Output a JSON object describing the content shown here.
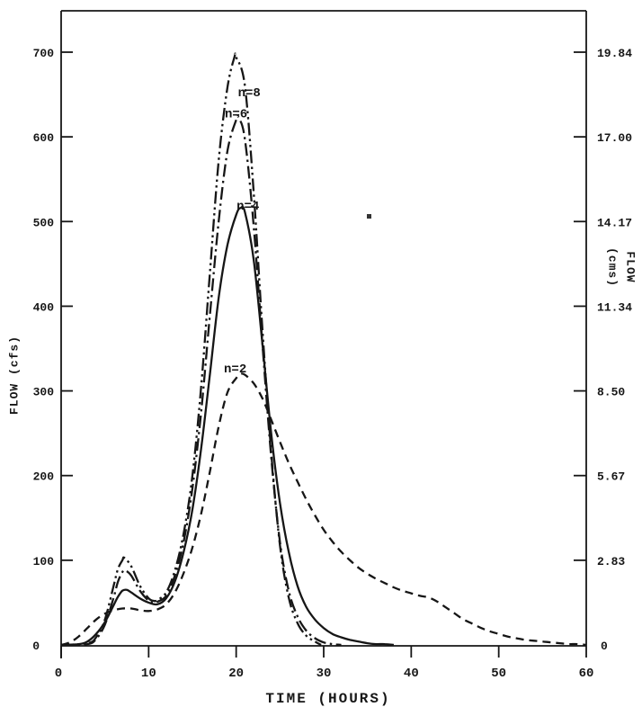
{
  "figure": {
    "background": "#ffffff",
    "ink": "#161616"
  },
  "chart_data": {
    "type": "line",
    "title": "",
    "xlabel": "TIME (HOURS)",
    "ylabel_left": "FLOW (cfs)",
    "ylabel_right_line1": "FLOW",
    "ylabel_right_line2": "(cms)",
    "xlim": [
      0,
      60
    ],
    "ylim_left_cfs": [
      0,
      733
    ],
    "grid": false,
    "legend": "inline curve labels",
    "x_ticks": [
      "0",
      "10",
      "20",
      "30",
      "40",
      "50",
      "60"
    ],
    "x_tick_values": [
      0,
      10,
      20,
      30,
      40,
      50,
      60
    ],
    "y_ticks": [
      {
        "cfs": 0,
        "left_label": "0",
        "right_label": "0"
      },
      {
        "cfs": 100,
        "left_label": "100",
        "right_label": "2.83"
      },
      {
        "cfs": 200,
        "left_label": "200",
        "right_label": "5.67"
      },
      {
        "cfs": 300,
        "left_label": "300",
        "right_label": "8.50"
      },
      {
        "cfs": 400,
        "left_label": "400",
        "right_label": "11.34"
      },
      {
        "cfs": 500,
        "left_label": "500",
        "right_label": "14.17"
      },
      {
        "cfs": 600,
        "left_label": "600",
        "right_label": "17.00"
      },
      {
        "cfs": 700,
        "left_label": "700",
        "right_label": "19.84"
      }
    ],
    "series": [
      {
        "name": "n2",
        "label": "n=2",
        "style": "dashed",
        "label_at": [
          18.6,
          322
        ],
        "points": [
          [
            0,
            0
          ],
          [
            1,
            3
          ],
          [
            2,
            10
          ],
          [
            3,
            20
          ],
          [
            4,
            30
          ],
          [
            5,
            37
          ],
          [
            6,
            41
          ],
          [
            7,
            43
          ],
          [
            8,
            43
          ],
          [
            9,
            41
          ],
          [
            10,
            40
          ],
          [
            11,
            42
          ],
          [
            12,
            48
          ],
          [
            13,
            62
          ],
          [
            14,
            85
          ],
          [
            15,
            115
          ],
          [
            16,
            155
          ],
          [
            17,
            205
          ],
          [
            18,
            258
          ],
          [
            19,
            298
          ],
          [
            20,
            315
          ],
          [
            20.5,
            320
          ],
          [
            21,
            319
          ],
          [
            22,
            309
          ],
          [
            23,
            291
          ],
          [
            24,
            266
          ],
          [
            25,
            240
          ],
          [
            26,
            215
          ],
          [
            27,
            193
          ],
          [
            28,
            172
          ],
          [
            29,
            153
          ],
          [
            30,
            136
          ],
          [
            31,
            122
          ],
          [
            32,
            110
          ],
          [
            33,
            100
          ],
          [
            34,
            91
          ],
          [
            35,
            84
          ],
          [
            36,
            78
          ],
          [
            37,
            73
          ],
          [
            38,
            68
          ],
          [
            39,
            64
          ],
          [
            40,
            61
          ],
          [
            41,
            58
          ],
          [
            42,
            56
          ],
          [
            43,
            51
          ],
          [
            44,
            44
          ],
          [
            45,
            37
          ],
          [
            46,
            30
          ],
          [
            47,
            25
          ],
          [
            48,
            20
          ],
          [
            49,
            16
          ],
          [
            50,
            13
          ],
          [
            51,
            10
          ],
          [
            52,
            8
          ],
          [
            53,
            6
          ],
          [
            54,
            5
          ],
          [
            55,
            4
          ],
          [
            56,
            3
          ],
          [
            57,
            2
          ],
          [
            58,
            1
          ],
          [
            59,
            1
          ],
          [
            60,
            0
          ]
        ]
      },
      {
        "name": "n4",
        "label": "n=4",
        "style": "solid",
        "label_at": [
          20.05,
          514
        ],
        "points": [
          [
            0,
            0
          ],
          [
            2,
            1
          ],
          [
            3,
            4
          ],
          [
            4,
            13
          ],
          [
            5,
            27
          ],
          [
            6,
            47
          ],
          [
            6.5,
            57
          ],
          [
            7,
            64
          ],
          [
            7.5,
            65
          ],
          [
            8,
            62
          ],
          [
            9,
            55
          ],
          [
            10,
            50
          ],
          [
            11,
            48
          ],
          [
            12,
            55
          ],
          [
            13,
            75
          ],
          [
            14,
            110
          ],
          [
            15,
            160
          ],
          [
            16,
            232
          ],
          [
            17,
            320
          ],
          [
            18,
            410
          ],
          [
            19,
            472
          ],
          [
            20,
            508
          ],
          [
            20.5,
            516
          ],
          [
            21,
            511
          ],
          [
            22,
            455
          ],
          [
            23,
            355
          ],
          [
            24,
            250
          ],
          [
            25,
            168
          ],
          [
            26,
            110
          ],
          [
            27,
            70
          ],
          [
            28,
            45
          ],
          [
            29,
            30
          ],
          [
            30,
            20
          ],
          [
            31,
            13
          ],
          [
            32,
            9
          ],
          [
            33,
            6
          ],
          [
            34,
            4
          ],
          [
            35,
            2
          ],
          [
            36,
            1
          ],
          [
            37,
            1
          ],
          [
            38,
            0
          ]
        ]
      },
      {
        "name": "n6",
        "label": "n=6",
        "style": "dash-dot",
        "label_at": [
          18.7,
          623
        ],
        "points": [
          [
            0,
            0
          ],
          [
            3,
            1
          ],
          [
            4,
            7
          ],
          [
            5,
            24
          ],
          [
            6,
            56
          ],
          [
            6.5,
            75
          ],
          [
            7,
            86
          ],
          [
            7.3,
            88
          ],
          [
            8,
            82
          ],
          [
            9,
            64
          ],
          [
            10,
            52
          ],
          [
            10.5,
            50
          ],
          [
            11,
            51
          ],
          [
            12,
            58
          ],
          [
            13,
            82
          ],
          [
            14,
            122
          ],
          [
            15,
            185
          ],
          [
            16,
            275
          ],
          [
            17,
            390
          ],
          [
            18,
            500
          ],
          [
            19,
            583
          ],
          [
            20,
            620
          ],
          [
            20.3,
            622
          ],
          [
            21,
            597
          ],
          [
            22,
            495
          ],
          [
            23,
            355
          ],
          [
            24,
            222
          ],
          [
            25,
            122
          ],
          [
            26,
            64
          ],
          [
            27,
            34
          ],
          [
            28,
            17
          ],
          [
            29,
            8
          ],
          [
            30,
            3
          ],
          [
            31,
            1
          ],
          [
            32,
            0
          ]
        ]
      },
      {
        "name": "n8",
        "label": "n=8",
        "style": "dash-dot-dot",
        "label_at": [
          20.2,
          648
        ],
        "points": [
          [
            0,
            0
          ],
          [
            3,
            2
          ],
          [
            4,
            9
          ],
          [
            5,
            30
          ],
          [
            6,
            70
          ],
          [
            6.5,
            90
          ],
          [
            7,
            100
          ],
          [
            7.2,
            103
          ],
          [
            8,
            93
          ],
          [
            9,
            70
          ],
          [
            10,
            55
          ],
          [
            10.6,
            52
          ],
          [
            11,
            53
          ],
          [
            12,
            62
          ],
          [
            13,
            88
          ],
          [
            14,
            132
          ],
          [
            15,
            200
          ],
          [
            16,
            305
          ],
          [
            17,
            440
          ],
          [
            18,
            572
          ],
          [
            19,
            658
          ],
          [
            19.8,
            694
          ],
          [
            20,
            694
          ],
          [
            21,
            660
          ],
          [
            22,
            535
          ],
          [
            23,
            372
          ],
          [
            24,
            228
          ],
          [
            25,
            118
          ],
          [
            26,
            56
          ],
          [
            27,
            26
          ],
          [
            28,
            11
          ],
          [
            29,
            4
          ],
          [
            29.7,
            0
          ]
        ]
      }
    ]
  }
}
